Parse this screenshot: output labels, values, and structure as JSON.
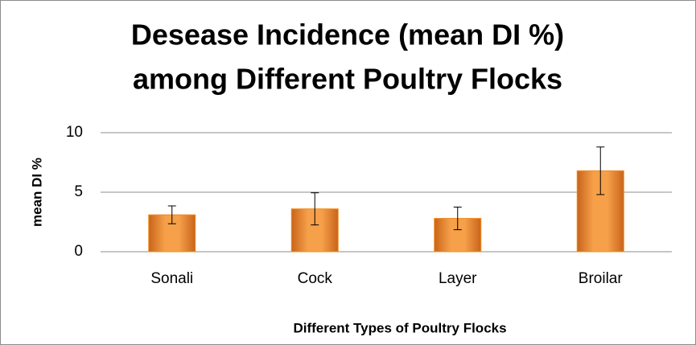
{
  "chart_data": {
    "type": "bar",
    "title": [
      "Desease Incidence (mean DI %)",
      "among Different Poultry Flocks"
    ],
    "x_label": "Different Types of Poultry Flocks",
    "y_label": "mean DI %",
    "categories": [
      "Sonali",
      "Cock",
      "Layer",
      "Broilar"
    ],
    "values": [
      3.1,
      3.6,
      2.8,
      6.8
    ],
    "errors": [
      0.75,
      1.35,
      0.95,
      2.0
    ],
    "color": "#f08c1e",
    "ylim": [
      0,
      10
    ],
    "yticks": [
      0,
      5,
      10
    ],
    "grid": true
  }
}
